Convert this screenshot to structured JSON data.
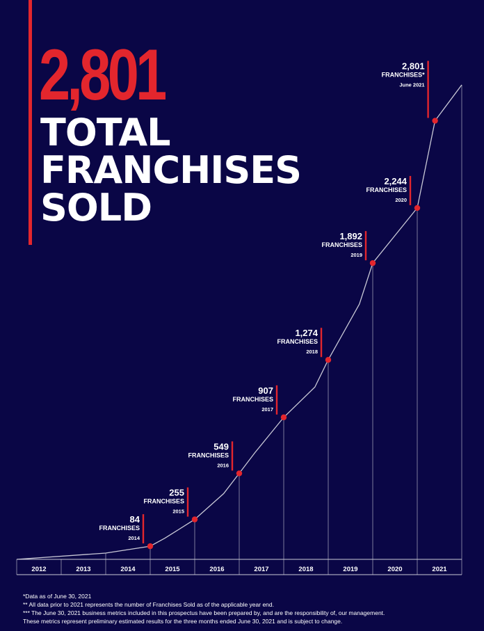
{
  "headline": {
    "number": "2,801",
    "line1": "TOTAL",
    "line2": "FRANCHISES",
    "line3": "SOLD"
  },
  "colors": {
    "background": "#0a0646",
    "accent": "#e3262d",
    "line": "#c9c9d6",
    "text": "#ffffff"
  },
  "chart_data": {
    "type": "line",
    "title": "",
    "xlabel": "",
    "ylabel": "",
    "categories": [
      "2012",
      "2013",
      "2014",
      "2015",
      "2016",
      "2017",
      "2018",
      "2019",
      "2020",
      "2021"
    ],
    "points": [
      {
        "t": 2012.0,
        "v": 0
      },
      {
        "t": 2014.0,
        "v": 40
      },
      {
        "t": 2015.0,
        "v": 84,
        "value_label": "84",
        "unit": "FRANCHISES",
        "period": "2014",
        "highlight": true
      },
      {
        "t": 2015.33,
        "v": 135
      },
      {
        "t": 2016.0,
        "v": 255,
        "value_label": "255",
        "unit": "FRANCHISES",
        "period": "2015",
        "highlight": true
      },
      {
        "t": 2016.65,
        "v": 420
      },
      {
        "t": 2017.0,
        "v": 549,
        "value_label": "549",
        "unit": "FRANCHISES",
        "period": "2016",
        "highlight": true
      },
      {
        "t": 2017.35,
        "v": 680
      },
      {
        "t": 2018.0,
        "v": 907,
        "value_label": "907",
        "unit": "FRANCHISES",
        "period": "2017",
        "highlight": true
      },
      {
        "t": 2018.7,
        "v": 1100
      },
      {
        "t": 2019.0,
        "v": 1274,
        "value_label": "1,274",
        "unit": "FRANCHISES",
        "period": "2018",
        "highlight": true
      },
      {
        "t": 2019.7,
        "v": 1630
      },
      {
        "t": 2020.0,
        "v": 1892,
        "value_label": "1,892",
        "unit": "FRANCHISES",
        "period": "2019",
        "highlight": true
      },
      {
        "t": 2021.0,
        "v": 2244,
        "value_label": "2,244",
        "unit": "FRANCHISES",
        "period": "2020",
        "highlight": true
      },
      {
        "t": 2021.4,
        "v": 2801,
        "value_label": "2,801",
        "unit": "FRANCHISES*",
        "period": "June 2021",
        "highlight": true
      },
      {
        "t": 2022.0,
        "v": 3030
      }
    ],
    "xlim": [
      2012,
      2022
    ],
    "ylim": [
      0,
      3400
    ],
    "grid": "vertical"
  },
  "footnotes": [
    "*Data as of June 30, 2021",
    "** All data prior to 2021 represents the number of Franchises Sold as of the applicable year end.",
    "*** The June 30, 2021 business metrics included in this prospectus have been prepared by, and are the responsibility of, our management.",
    "These metrics represent preliminary estimated results for the three months ended June 30, 2021 and is subject to change."
  ]
}
